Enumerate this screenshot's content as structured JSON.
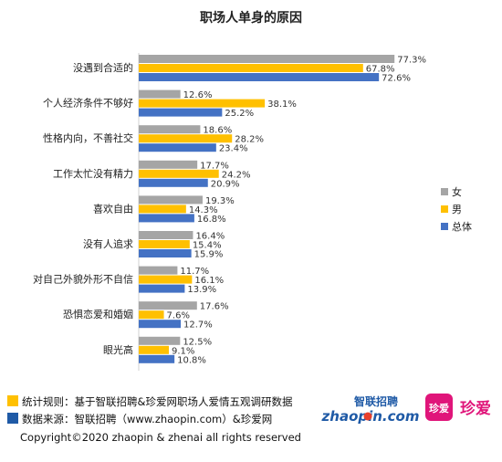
{
  "chart_data": {
    "type": "bar",
    "orientation": "horizontal",
    "title": "职场人单身的原因",
    "categories": [
      "没遇到合适的",
      "个人经济条件不够好",
      "性格内向，不善社交",
      "工作太忙没有精力",
      "喜欢自由",
      "没有人追求",
      "对自己外貌外形不自信",
      "恐惧恋爱和婚姻",
      "眼光高"
    ],
    "series": [
      {
        "name": "女",
        "color": "#a5a5a5",
        "values": [
          77.3,
          12.6,
          18.6,
          17.7,
          19.3,
          16.4,
          11.7,
          17.6,
          12.5
        ]
      },
      {
        "name": "男",
        "color": "#ffc000",
        "values": [
          67.8,
          38.1,
          28.2,
          24.2,
          14.3,
          15.4,
          16.1,
          7.6,
          9.1
        ]
      },
      {
        "name": "总体",
        "color": "#4472c4",
        "values": [
          72.6,
          25.2,
          23.4,
          20.9,
          16.8,
          15.9,
          13.9,
          12.7,
          10.8
        ]
      }
    ],
    "value_suffix": "%",
    "xlim": [
      0,
      80
    ],
    "grid": false,
    "legend_position": "right"
  },
  "footer": {
    "line1": "统计规则：基于智联招聘&珍爱网职场人爱情五观调研数据",
    "line1_color": "#ffc000",
    "line2": "数据来源：智联招聘（www.zhaopin.com）&珍爱网",
    "line2_color": "#1f5aa6",
    "copyright": "Copyright©2020 zhaopin & zhenai  all rights reserved"
  },
  "brand": {
    "zhaopin_cn": "智联招聘",
    "zhaopin_en": "zhaopin.com",
    "zhenai_cn": "珍爱",
    "zhenai_box": "珍爱"
  }
}
